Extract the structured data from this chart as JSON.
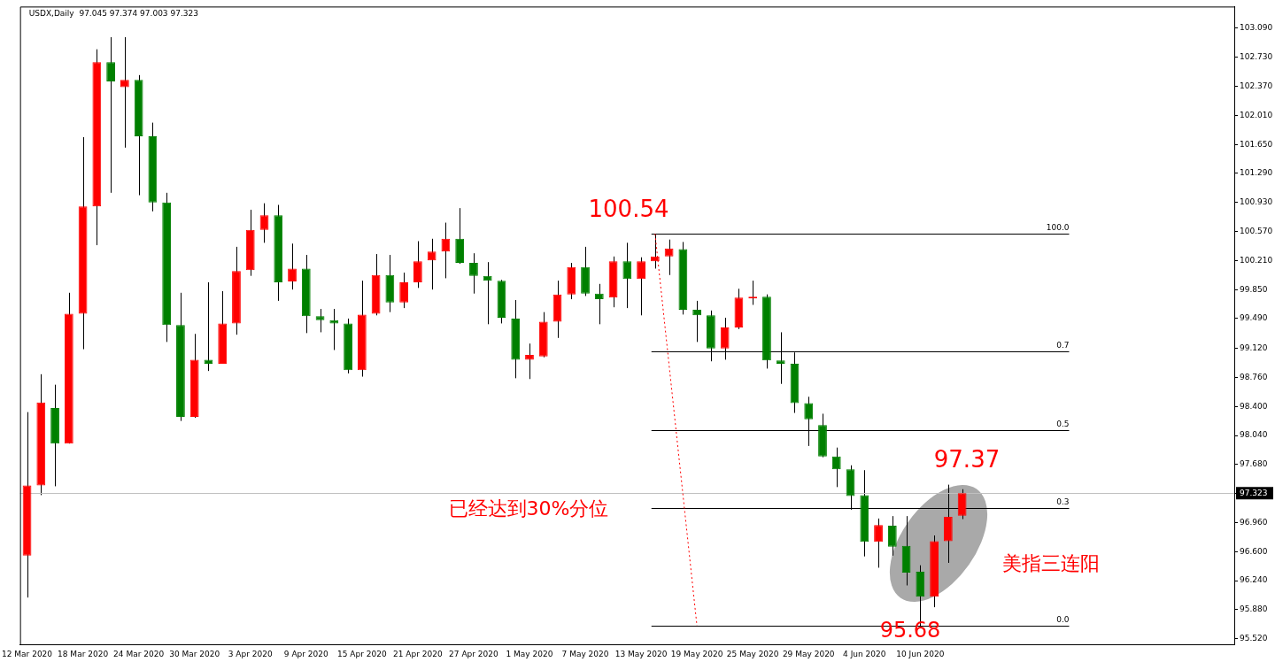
{
  "chart_data": {
    "type": "candlestick",
    "title": "USDX,Daily  97.045 97.374 97.003 97.323",
    "categories": [
      "12 Mar 2020",
      null,
      null,
      null,
      "18 Mar 2020",
      null,
      null,
      null,
      "24 Mar 2020",
      null,
      null,
      null,
      "30 Mar 2020",
      null,
      null,
      null,
      "3 Apr 2020",
      null,
      null,
      null,
      "9 Apr 2020",
      null,
      null,
      null,
      "15 Apr 2020",
      null,
      null,
      null,
      "21 Apr 2020",
      null,
      null,
      null,
      "27 Apr 2020",
      null,
      null,
      null,
      "1 May 2020",
      null,
      null,
      null,
      "7 May 2020",
      null,
      null,
      null,
      "13 May 2020",
      null,
      null,
      null,
      "19 May 2020",
      null,
      null,
      null,
      "25 May 2020",
      null,
      null,
      null,
      "29 May 2020",
      null,
      null,
      null,
      "4 Jun 2020",
      null,
      null,
      null,
      "10 Jun 2020",
      null,
      null,
      null,
      null,
      null,
      null,
      null,
      null,
      null,
      null,
      null,
      null,
      null,
      null,
      null,
      null,
      null,
      null,
      null,
      null,
      null,
      null
    ],
    "ohlc": [
      [
        96.55,
        98.33,
        96.03,
        97.42
      ],
      [
        97.42,
        98.8,
        97.3,
        98.45
      ],
      [
        98.38,
        98.67,
        97.41,
        97.94
      ],
      [
        97.94,
        99.81,
        97.94,
        99.55
      ],
      [
        99.55,
        101.74,
        99.11,
        100.88
      ],
      [
        100.88,
        102.83,
        100.4,
        102.67
      ],
      [
        102.67,
        102.98,
        101.05,
        102.43
      ],
      [
        102.36,
        102.98,
        101.61,
        102.45
      ],
      [
        102.45,
        102.51,
        101.02,
        101.75
      ],
      [
        101.75,
        101.92,
        100.82,
        100.93
      ],
      [
        100.93,
        101.05,
        99.2,
        99.41
      ],
      [
        99.41,
        99.81,
        98.22,
        98.27
      ],
      [
        98.27,
        99.3,
        98.26,
        98.98
      ],
      [
        98.98,
        99.94,
        98.84,
        98.93
      ],
      [
        98.93,
        99.83,
        98.93,
        99.43
      ],
      [
        99.43,
        100.38,
        99.29,
        100.08
      ],
      [
        100.09,
        100.84,
        100.02,
        100.59
      ],
      [
        100.59,
        100.92,
        100.43,
        100.77
      ],
      [
        100.77,
        100.9,
        99.71,
        99.94
      ],
      [
        99.95,
        100.42,
        99.85,
        100.11
      ],
      [
        100.11,
        100.28,
        99.31,
        99.52
      ],
      [
        99.52,
        99.61,
        99.32,
        99.47
      ],
      [
        99.47,
        99.61,
        99.1,
        99.43
      ],
      [
        99.43,
        99.49,
        98.81,
        98.85
      ],
      [
        98.85,
        99.96,
        98.77,
        99.54
      ],
      [
        99.55,
        100.29,
        99.53,
        100.03
      ],
      [
        100.03,
        100.28,
        99.57,
        99.69
      ],
      [
        99.69,
        100.06,
        99.62,
        99.94
      ],
      [
        99.94,
        100.45,
        99.87,
        100.2
      ],
      [
        100.21,
        100.48,
        99.85,
        100.32
      ],
      [
        100.32,
        100.68,
        99.99,
        100.48
      ],
      [
        100.48,
        100.86,
        100.17,
        100.18
      ],
      [
        100.18,
        100.3,
        99.8,
        100.02
      ],
      [
        100.02,
        100.19,
        99.42,
        99.96
      ],
      [
        99.96,
        99.97,
        99.43,
        99.5
      ],
      [
        99.49,
        99.72,
        98.75,
        98.98
      ],
      [
        98.98,
        99.18,
        98.74,
        99.04
      ],
      [
        99.02,
        99.57,
        99.01,
        99.45
      ],
      [
        99.45,
        99.96,
        99.25,
        99.79
      ],
      [
        99.79,
        100.18,
        99.73,
        100.13
      ],
      [
        100.13,
        100.38,
        99.77,
        99.8
      ],
      [
        99.8,
        99.92,
        99.42,
        99.73
      ],
      [
        99.75,
        100.26,
        99.63,
        100.2
      ],
      [
        100.2,
        100.43,
        99.62,
        99.98
      ],
      [
        99.98,
        100.25,
        99.53,
        100.2
      ],
      [
        100.2,
        100.54,
        100.11,
        100.26
      ],
      [
        100.26,
        100.47,
        100.03,
        100.36
      ],
      [
        100.35,
        100.44,
        99.54,
        99.6
      ],
      [
        99.6,
        99.71,
        99.2,
        99.53
      ],
      [
        99.53,
        99.59,
        98.96,
        99.12
      ],
      [
        99.12,
        99.5,
        98.98,
        99.38
      ],
      [
        99.38,
        99.86,
        99.36,
        99.75
      ],
      [
        99.74,
        99.96,
        99.66,
        99.76
      ],
      [
        99.76,
        99.79,
        98.87,
        98.97
      ],
      [
        98.97,
        99.32,
        98.68,
        98.93
      ],
      [
        98.93,
        99.07,
        98.32,
        98.44
      ],
      [
        98.44,
        98.52,
        97.91,
        98.24
      ],
      [
        98.17,
        98.31,
        97.77,
        97.78
      ],
      [
        97.78,
        97.89,
        97.4,
        97.62
      ],
      [
        97.62,
        97.67,
        97.12,
        97.29
      ],
      [
        97.3,
        97.61,
        96.54,
        96.72
      ],
      [
        96.72,
        97.01,
        96.4,
        96.93
      ],
      [
        96.92,
        97.04,
        96.55,
        96.66
      ],
      [
        96.67,
        97.04,
        96.18,
        96.34
      ],
      [
        96.35,
        96.43,
        95.68,
        96.04
      ],
      [
        96.04,
        96.8,
        95.91,
        96.73
      ],
      [
        96.73,
        97.43,
        96.46,
        97.03
      ],
      [
        97.045,
        97.374,
        97.003,
        97.323
      ],
      null,
      null,
      null,
      null,
      null,
      null,
      null,
      null,
      null,
      null,
      null,
      null,
      null,
      null,
      null,
      null,
      null,
      null,
      null
    ],
    "colors": [
      "#ff0000",
      "#ff0000",
      "#008000",
      "#ff0000",
      "#ff0000",
      "#ff0000",
      "#008000",
      "#ff0000",
      "#008000",
      "#008000",
      "#008000",
      "#008000",
      "#ff0000",
      "#008000",
      "#ff0000",
      "#ff0000",
      "#ff0000",
      "#ff0000",
      "#008000",
      "#ff0000",
      "#008000",
      "#008000",
      "#008000",
      "#008000",
      "#ff0000",
      "#ff0000",
      "#008000",
      "#ff0000",
      "#ff0000",
      "#ff0000",
      "#ff0000",
      "#008000",
      "#008000",
      "#008000",
      "#008000",
      "#008000",
      "#ff0000",
      "#ff0000",
      "#ff0000",
      "#ff0000",
      "#008000",
      "#008000",
      "#ff0000",
      "#008000",
      "#ff0000",
      "#ff0000",
      "#ff0000",
      "#008000",
      "#008000",
      "#008000",
      "#ff0000",
      "#ff0000",
      "#ff0000",
      "#008000",
      "#008000",
      "#008000",
      "#008000",
      "#008000",
      "#008000",
      "#008000",
      "#008000",
      "#ff0000",
      "#008000",
      "#008000",
      "#008000",
      "#ff0000",
      "#ff0000",
      "#ff0000",
      null,
      null,
      null,
      null,
      null,
      null,
      null,
      null,
      null,
      null,
      null,
      null,
      null,
      null,
      null,
      null,
      null,
      null,
      null
    ],
    "series": [
      {
        "type": "line",
        "color": "#ff0000",
        "line_style": "dotted",
        "values": [
          null,
          null,
          null,
          null,
          null,
          null,
          null,
          null,
          null,
          null,
          null,
          null,
          null,
          null,
          null,
          null,
          null,
          null,
          null,
          null,
          null,
          null,
          null,
          null,
          null,
          null,
          null,
          null,
          null,
          null,
          null,
          null,
          null,
          null,
          null,
          null,
          null,
          null,
          null,
          null,
          null,
          null,
          null,
          null,
          null,
          100.54,
          null,
          null,
          95.68,
          null,
          null,
          null,
          null,
          null,
          null,
          null,
          null,
          null,
          null,
          null,
          null,
          null,
          null,
          null,
          null,
          null,
          null,
          null,
          null,
          null,
          null,
          null,
          null,
          null,
          null,
          null,
          null,
          null,
          null,
          null,
          null,
          null,
          null,
          null,
          null,
          null,
          null
        ]
      }
    ],
    "ylim": [
      95.45,
      103.36
    ],
    "yticks": [
      {
        "value": 95.52,
        "label": "95.520"
      },
      {
        "value": 95.88,
        "label": "95.880"
      },
      {
        "value": 96.24,
        "label": "96.240"
      },
      {
        "value": 96.6,
        "label": "96.600"
      },
      {
        "value": 96.96,
        "label": "96.960"
      },
      {
        "value": 97.323,
        "label": "97.323"
      },
      {
        "value": 97.68,
        "label": "97.680"
      },
      {
        "value": 98.04,
        "label": "98.040"
      },
      {
        "value": 98.4,
        "label": "98.400"
      },
      {
        "value": 98.76,
        "label": "98.760"
      },
      {
        "value": 99.12,
        "label": "99.120"
      },
      {
        "value": 99.49,
        "label": "99.490"
      },
      {
        "value": 99.85,
        "label": "99.850"
      },
      {
        "value": 100.21,
        "label": "100.210"
      },
      {
        "value": 100.57,
        "label": "100.570"
      },
      {
        "value": 100.93,
        "label": "100.930"
      },
      {
        "value": 101.29,
        "label": "101.290"
      },
      {
        "value": 101.65,
        "label": "101.650"
      },
      {
        "value": 102.01,
        "label": "102.010"
      },
      {
        "value": 102.37,
        "label": "102.370"
      },
      {
        "value": 102.73,
        "label": "102.730"
      },
      {
        "value": 103.09,
        "label": "103.090"
      }
    ],
    "ref_lines": [
      {
        "axis": "y",
        "value": 100.54,
        "color": "#000000"
      },
      {
        "axis": "y",
        "value": 99.08,
        "color": "#000000"
      },
      {
        "axis": "y",
        "value": 98.11,
        "color": "#000000"
      },
      {
        "axis": "y",
        "value": 97.14,
        "color": "#000000"
      },
      {
        "axis": "y",
        "value": 95.68,
        "color": "#000000"
      },
      {
        "axis": "y",
        "value": 97.323,
        "color": "#c0c0c0"
      }
    ],
    "annotations": [
      {
        "text": "100.0",
        "y": 100.54
      },
      {
        "text": "0.7",
        "y": 99.08
      },
      {
        "text": "0.5",
        "y": 98.11
      },
      {
        "text": "0.3",
        "y": 97.14
      },
      {
        "text": "0.0",
        "y": 95.68
      },
      "100.54",
      "97.37",
      "95.68",
      "已经达到30%分位",
      "美指三连阳"
    ]
  }
}
